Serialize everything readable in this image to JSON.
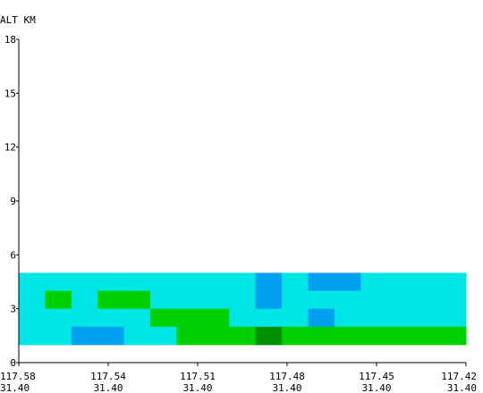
{
  "chart_data": {
    "type": "heatmap",
    "ylabel": "ALT KM",
    "yticks": [
      0,
      3,
      6,
      9,
      12,
      15,
      18
    ],
    "ylim": [
      0,
      18
    ],
    "xticks": [
      {
        "lon": "117.58",
        "lat": "31.40"
      },
      {
        "lon": "117.54",
        "lat": "31.40"
      },
      {
        "lon": "117.51",
        "lat": "31.40"
      },
      {
        "lon": "117.48",
        "lat": "31.40"
      },
      {
        "lon": "117.45",
        "lat": "31.40"
      },
      {
        "lon": "117.42",
        "lat": "31.40"
      }
    ],
    "grid_columns": 17,
    "grid_altitude_levels_km": [
      1,
      2,
      3,
      4,
      5
    ],
    "level_colors": {
      "1": "#00E5E5",
      "2": "#00A0F0",
      "3": "#00D000",
      "4": "#009000"
    },
    "rows_top_to_bottom": [
      [
        1,
        1,
        1,
        1,
        1,
        1,
        1,
        1,
        1,
        2,
        1,
        2,
        2,
        1,
        1,
        1,
        1
      ],
      [
        1,
        3,
        1,
        3,
        3,
        1,
        1,
        1,
        1,
        2,
        1,
        1,
        1,
        1,
        1,
        1,
        1
      ],
      [
        1,
        1,
        1,
        1,
        1,
        3,
        3,
        3,
        1,
        1,
        1,
        2,
        1,
        1,
        1,
        1,
        1
      ],
      [
        1,
        1,
        2,
        2,
        1,
        1,
        3,
        3,
        3,
        4,
        3,
        3,
        3,
        3,
        3,
        3,
        3
      ]
    ]
  }
}
